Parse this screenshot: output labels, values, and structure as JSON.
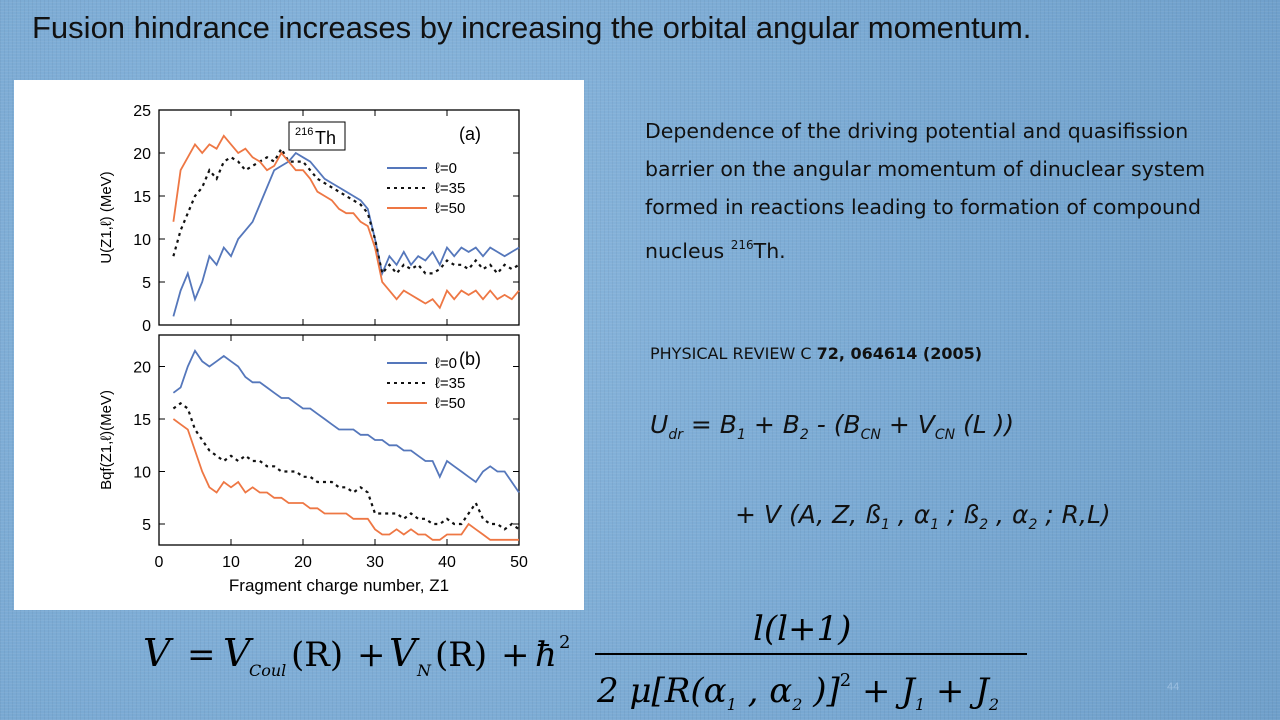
{
  "slide": {
    "title": "Fusion hindrance increases by increasing the orbital angular momentum.",
    "page_number": "44"
  },
  "description": {
    "line1": "Dependence of the driving potential and quasifission",
    "line2": "barrier on the angular momentum of dinuclear system",
    "line3a": " formed in reactions leading to  formation of compound nucleus  ",
    "mass_number": "216",
    "line3b": "Th."
  },
  "reference": {
    "journal": " PHYSICAL REVIEW C ",
    "details": "72, 064614 (2005)"
  },
  "equation1": {
    "U": "U",
    "U_sub": "dr",
    "p1": " = B",
    "s1": "1",
    "p2": " + B",
    "s2": "2",
    "p3": " - (B",
    "s3": "CN",
    "p4": " + V",
    "s4": "CN",
    "p5": " (L ))"
  },
  "equation2": {
    "p1": "+ V (A, Z, ß",
    "s1": "1",
    "p2": " , α",
    "s2": "1",
    "p3": " ; ß",
    "s3": "2",
    "p4": " , α",
    "s4": "2",
    "p5": " ; R,L)"
  },
  "formula": {
    "lhs": "V",
    "eq": "=",
    "v_coul": "V",
    "coul_sub": "Coul",
    "r1": "(R)",
    "plus1": "+",
    "v_n": "V",
    "n_sub": "N",
    "r2": "(R)",
    "plus2": "+",
    "hbar": "ħ",
    "hbar_exp": "2",
    "numerator": "l(l+1)",
    "denominator_a": "2 μ[R(α",
    "denominator_a1": "1",
    "denominator_b": " , α",
    "denominator_b2": "2",
    "denominator_c": " )]",
    "denominator_exp": "2",
    "denominator_d": " + J",
    "j1": "1",
    "denominator_e": " + J",
    "j2": "2"
  },
  "colors": {
    "l0": "#5577bb",
    "l35": "#111111",
    "l50": "#ee7744",
    "background": "#7faed6"
  },
  "chart_data": [
    {
      "type": "line",
      "panel_label": "(a)",
      "nucleus_mass": "216",
      "nucleus_symbol": "Th",
      "ylabel": "U(Z1,ℓ) (MeV)",
      "ylim": [
        0,
        25
      ],
      "yticks": [
        "0",
        "5",
        "10",
        "15",
        "20",
        "25"
      ],
      "xlim": [
        0,
        50
      ],
      "legend": "top-right",
      "series": [
        {
          "name": "ℓ=0",
          "style": "solid",
          "color": "#5577bb",
          "x": [
            2,
            3,
            4,
            5,
            6,
            7,
            8,
            9,
            10,
            11,
            12,
            13,
            14,
            15,
            16,
            17,
            18,
            19,
            20,
            21,
            22,
            23,
            24,
            25,
            26,
            27,
            28,
            29,
            30,
            31,
            32,
            33,
            34,
            35,
            36,
            37,
            38,
            39,
            40,
            41,
            42,
            43,
            44,
            45,
            46,
            47,
            48,
            49,
            50
          ],
          "y": [
            1,
            4,
            6,
            3,
            5,
            8,
            7,
            9,
            8,
            10,
            11,
            12,
            14,
            16,
            18,
            18.5,
            19,
            20,
            19.5,
            19,
            18,
            17,
            16.5,
            16,
            15.5,
            15,
            14.5,
            13.5,
            10,
            6,
            8,
            7,
            8.5,
            7,
            8,
            7.5,
            8.5,
            7,
            9,
            8,
            9,
            8.5,
            9,
            8,
            9,
            8.5,
            8,
            8.5,
            9
          ]
        },
        {
          "name": "ℓ=35",
          "style": "dotted",
          "color": "#111111",
          "x": [
            2,
            3,
            4,
            5,
            6,
            7,
            8,
            9,
            10,
            11,
            12,
            13,
            14,
            15,
            16,
            17,
            18,
            19,
            20,
            21,
            22,
            23,
            24,
            25,
            26,
            27,
            28,
            29,
            30,
            31,
            32,
            33,
            34,
            35,
            36,
            37,
            38,
            39,
            40,
            41,
            42,
            43,
            44,
            45,
            46,
            47,
            48,
            49,
            50
          ],
          "y": [
            8,
            11,
            13,
            15,
            16,
            18,
            17,
            19,
            19.5,
            19,
            18,
            18.5,
            19,
            19.5,
            19,
            20.5,
            19,
            19,
            19,
            18,
            17,
            16.5,
            16,
            15.5,
            15,
            14.5,
            14,
            13,
            10,
            6,
            7,
            6,
            7,
            6.5,
            7,
            6,
            6,
            6.5,
            7.5,
            7,
            7,
            6.5,
            7.5,
            6.5,
            7,
            6,
            7,
            6.5,
            7
          ]
        },
        {
          "name": "ℓ=50",
          "style": "solid",
          "color": "#ee7744",
          "x": [
            2,
            3,
            4,
            5,
            6,
            7,
            8,
            9,
            10,
            11,
            12,
            13,
            14,
            15,
            16,
            17,
            18,
            19,
            20,
            21,
            22,
            23,
            24,
            25,
            26,
            27,
            28,
            29,
            30,
            31,
            32,
            33,
            34,
            35,
            36,
            37,
            38,
            39,
            40,
            41,
            42,
            43,
            44,
            45,
            46,
            47,
            48,
            49,
            50
          ],
          "y": [
            12,
            18,
            19.5,
            21,
            20,
            21,
            20.5,
            22,
            21,
            20,
            20.5,
            19.5,
            19,
            18,
            18.5,
            20,
            19,
            18,
            18,
            17,
            15.5,
            15,
            14.5,
            13.5,
            13,
            13,
            12,
            11.5,
            9,
            5,
            4,
            3,
            4,
            3.5,
            3,
            2.5,
            3,
            2,
            4,
            3,
            4,
            3.5,
            4,
            3,
            4,
            3,
            3.5,
            3,
            4
          ]
        }
      ]
    },
    {
      "type": "line",
      "panel_label": "(b)",
      "xlabel": "Fragment charge number, Z1",
      "ylabel": "Bqf(Z1,ℓ)(MeV)",
      "ylim": [
        3,
        23
      ],
      "yticks": [
        "5",
        "10",
        "15",
        "20"
      ],
      "xlim": [
        0,
        50
      ],
      "xticks": [
        "0",
        "10",
        "20",
        "30",
        "40",
        "50"
      ],
      "legend": "top-right",
      "series": [
        {
          "name": "ℓ=0",
          "style": "solid",
          "color": "#5577bb",
          "x": [
            2,
            3,
            4,
            5,
            6,
            7,
            8,
            9,
            10,
            11,
            12,
            13,
            14,
            15,
            16,
            17,
            18,
            19,
            20,
            21,
            22,
            23,
            24,
            25,
            26,
            27,
            28,
            29,
            30,
            31,
            32,
            33,
            34,
            35,
            36,
            37,
            38,
            39,
            40,
            41,
            42,
            43,
            44,
            45,
            46,
            47,
            48,
            49,
            50
          ],
          "y": [
            17.5,
            18,
            20,
            21.5,
            20.5,
            20,
            20.5,
            21,
            20.5,
            20,
            19,
            18.5,
            18.5,
            18,
            17.5,
            17,
            17,
            16.5,
            16,
            16,
            15.5,
            15,
            14.5,
            14,
            14,
            14,
            13.5,
            13.5,
            13,
            13,
            12.5,
            12.5,
            12,
            12,
            11.5,
            11,
            11,
            9.5,
            11,
            10.5,
            10,
            9.5,
            9,
            10,
            10.5,
            10,
            10,
            9,
            8
          ]
        },
        {
          "name": "ℓ=35",
          "style": "dotted",
          "color": "#111111",
          "x": [
            2,
            3,
            4,
            5,
            6,
            7,
            8,
            9,
            10,
            11,
            12,
            13,
            14,
            15,
            16,
            17,
            18,
            19,
            20,
            21,
            22,
            23,
            24,
            25,
            26,
            27,
            28,
            29,
            30,
            31,
            32,
            33,
            34,
            35,
            36,
            37,
            38,
            39,
            40,
            41,
            42,
            43,
            44,
            45,
            46,
            47,
            48,
            49,
            50
          ],
          "y": [
            16,
            16.5,
            16,
            14,
            13,
            12,
            11.5,
            11,
            11.5,
            11,
            11.5,
            11,
            11,
            10.5,
            10.5,
            10,
            10,
            10,
            9.5,
            9.5,
            9,
            9,
            9,
            8.5,
            8.5,
            8,
            8.5,
            8,
            6,
            6,
            6,
            6,
            5.5,
            6,
            5.5,
            5.5,
            5,
            5,
            5.5,
            5,
            5,
            6,
            7,
            5.5,
            5,
            5,
            4.5,
            5,
            4.5
          ]
        },
        {
          "name": "ℓ=50",
          "style": "solid",
          "color": "#ee7744",
          "x": [
            2,
            3,
            4,
            5,
            6,
            7,
            8,
            9,
            10,
            11,
            12,
            13,
            14,
            15,
            16,
            17,
            18,
            19,
            20,
            21,
            22,
            23,
            24,
            25,
            26,
            27,
            28,
            29,
            30,
            31,
            32,
            33,
            34,
            35,
            36,
            37,
            38,
            39,
            40,
            41,
            42,
            43,
            44,
            45,
            46,
            47,
            48,
            49,
            50
          ],
          "y": [
            15,
            14.5,
            14,
            12,
            10,
            8.5,
            8,
            9,
            8.5,
            9,
            8,
            8.5,
            8,
            8,
            7.5,
            7.5,
            7,
            7,
            7,
            6.5,
            6.5,
            6,
            6,
            6,
            6,
            5.5,
            5.5,
            5.5,
            4.5,
            4,
            4,
            4.5,
            4,
            4.5,
            4,
            4,
            3.5,
            3.5,
            4,
            4,
            4,
            5,
            4.5,
            4,
            3.5,
            3.5,
            3.5,
            3.5,
            3.5
          ]
        }
      ]
    }
  ]
}
